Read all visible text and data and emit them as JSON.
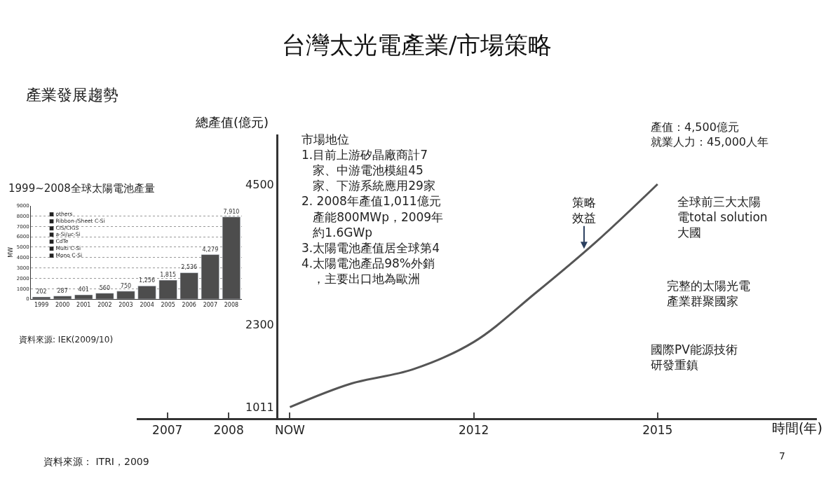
{
  "chart_data": [
    {
      "type": "line",
      "title": "台灣太光電產業/市場策略",
      "subtitle": "產業發展趨勢",
      "xlabel": "時間(年)",
      "ylabel": "總產值(億元)",
      "x": [
        2009,
        2010,
        2011,
        2012,
        2013,
        2014,
        2015
      ],
      "series": [
        {
          "color": "#555555",
          "values": [
            1011,
            1380,
            1600,
            2030,
            2790,
            3600,
            4500
          ]
        }
      ],
      "xlim": [
        2006.5,
        2017.6
      ],
      "ylim": [
        840,
        5280
      ],
      "xticks": [
        2007,
        2008,
        {
          "value": 2009,
          "label": "NOW"
        },
        2012,
        2015
      ],
      "yticks": [
        1011,
        2300,
        4500
      ],
      "grid": false,
      "marker": "none",
      "line_style": "solid",
      "annotations": [
        "市場地位\n1.目前上游矽晶廠商計7家、中游電池模組45家、下游系統應用29家\n2. 2008年產值1,011億元產能800MWp，2009年約1.6GWp\n3.太陽電池產值居全球第4\n4.太陽電池產品98%外銷，主要出口地為歐洲",
        {
          "text": "策略效益",
          "x": 2013.8,
          "y": 3490
        },
        "產值：4,500億元就業人力：45,000人年",
        "全球前三大太陽電total solution大國",
        "完整的太陽光電產業群聚國家",
        "國際PV能源技術研發重鎮",
        "資料來源： ITRI，2009",
        "7"
      ]
    },
    {
      "type": "bar",
      "title": "1999~2008全球太陽電池產量",
      "ylabel": "MW",
      "categories": [
        "1999",
        "2000",
        "2001",
        "2002",
        "2003",
        "2004",
        "2005",
        "2006",
        "2007",
        "2008"
      ],
      "values": [
        202,
        287,
        401,
        560,
        750,
        1256,
        1815,
        2536,
        4279,
        7910
      ],
      "value_labels": [
        "202",
        "287",
        "401",
        "560",
        "750",
        "1,256",
        "1,815",
        "2,536",
        "4,279",
        "7,910"
      ],
      "color": "#4d4d4d",
      "ylim": [
        0,
        9000
      ],
      "yticks": [
        0,
        1000,
        2000,
        3000,
        4000,
        5000,
        6000,
        7000,
        8000,
        9000
      ],
      "grid": "y",
      "annotations": [
        "■ others\n■ Ribbon-/Sheet C-Si\n■ CIS/CIGS\n■ a-Si/μc-Si\n■ CdTe\n■ Multi C-Si\n■ Mono C-Si",
        "資料來源: IEK(2009/10)"
      ]
    }
  ]
}
